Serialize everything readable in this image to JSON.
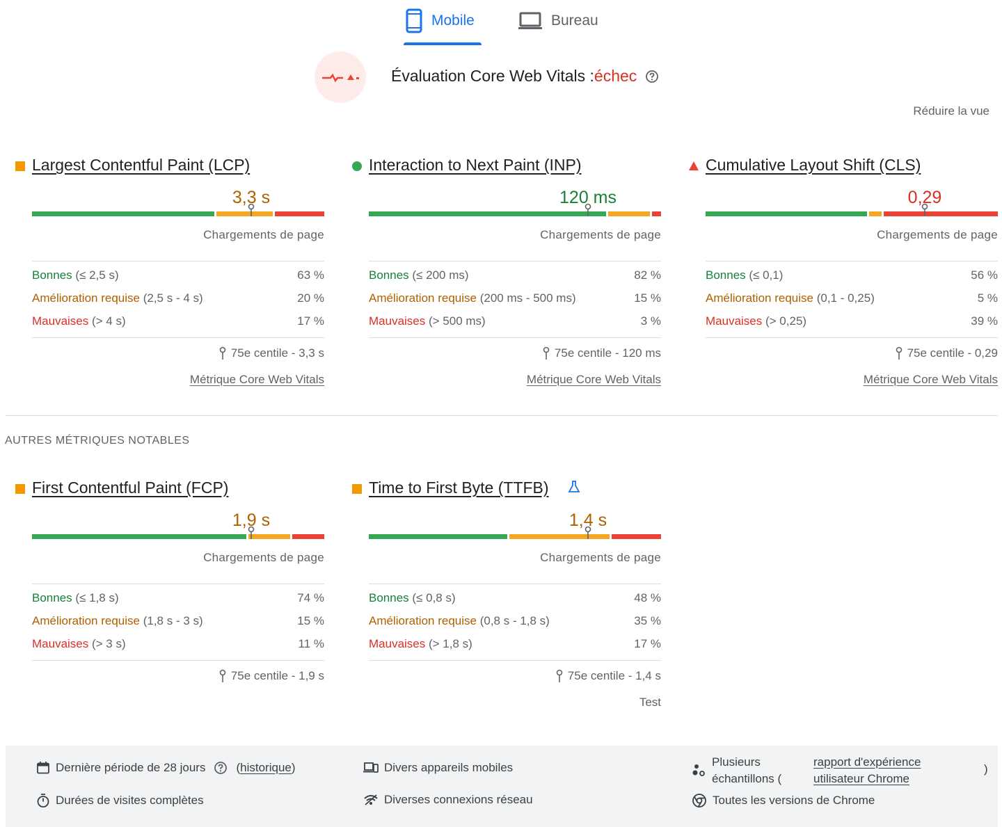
{
  "tabs": [
    {
      "label": "Mobile",
      "icon": "smartphone-icon",
      "active": true
    },
    {
      "label": "Bureau",
      "icon": "laptop-icon",
      "active": false
    }
  ],
  "assessment": {
    "title": "Évaluation Core Web Vitals :",
    "status": "échec",
    "icon": "failed-assessment-icon",
    "status_color": "#d93025"
  },
  "reduce_view_label": "Réduire la vue",
  "loads_label": "Chargements de page",
  "core_link_label": "Métrique Core Web Vitals",
  "metrics": [
    {
      "id": "lcp",
      "name": "Largest Contentful Paint (LCP)",
      "indicator": "square",
      "indicator_color": "#f29900",
      "value": "3,3 s",
      "value_class": "avg",
      "good": {
        "label": "Bonnes",
        "range": "(≤ 2,5 s)",
        "pct": "63 %",
        "fraction": 0.63
      },
      "average": {
        "label": "Amélioration requise",
        "range": "(2,5 s - 4 s)",
        "pct": "20 %",
        "fraction": 0.2
      },
      "poor": {
        "label": "Mauvaises",
        "range": "(> 4 s)",
        "pct": "17 %",
        "fraction": 0.17
      },
      "p75_fraction": 0.75,
      "p75": "75e centile - 3,3 s"
    },
    {
      "id": "inp",
      "name": "Interaction to Next Paint (INP)",
      "indicator": "circle",
      "indicator_color": "#34a853",
      "value": "120 ms",
      "value_class": "good",
      "good": {
        "label": "Bonnes",
        "range": "(≤ 200 ms)",
        "pct": "82 %",
        "fraction": 0.82
      },
      "average": {
        "label": "Amélioration requise",
        "range": "(200 ms - 500 ms)",
        "pct": "15 %",
        "fraction": 0.15
      },
      "poor": {
        "label": "Mauvaises",
        "range": "(> 500 ms)",
        "pct": "3 %",
        "fraction": 0.03
      },
      "p75_fraction": 0.75,
      "p75": "75e centile - 120 ms"
    },
    {
      "id": "cls",
      "name": "Cumulative Layout Shift (CLS)",
      "indicator": "triangle",
      "indicator_color": "#ea4335",
      "value": "0,29",
      "value_class": "poor",
      "good": {
        "label": "Bonnes",
        "range": "(≤ 0,1)",
        "pct": "56 %",
        "fraction": 0.56
      },
      "average": {
        "label": "Amélioration requise",
        "range": "(0,1 - 0,25)",
        "pct": "5 %",
        "fraction": 0.05
      },
      "poor": {
        "label": "Mauvaises",
        "range": "(> 0,25)",
        "pct": "39 %",
        "fraction": 0.39
      },
      "p75_fraction": 0.75,
      "p75": "75e centile - 0,29"
    }
  ],
  "other_title": "AUTRES MÉTRIQUES NOTABLES",
  "other_metrics": [
    {
      "id": "fcp",
      "name": "First Contentful Paint (FCP)",
      "indicator": "square",
      "indicator_color": "#f29900",
      "value": "1,9 s",
      "value_class": "avg",
      "good": {
        "label": "Bonnes",
        "range": "(≤ 1,8 s)",
        "pct": "74 %",
        "fraction": 0.74
      },
      "average": {
        "label": "Amélioration requise",
        "range": "(1,8 s - 3 s)",
        "pct": "15 %",
        "fraction": 0.15
      },
      "poor": {
        "label": "Mauvaises",
        "range": "(> 3 s)",
        "pct": "11 %",
        "fraction": 0.11
      },
      "p75_fraction": 0.75,
      "p75": "75e centile - 1,9 s"
    },
    {
      "id": "ttfb",
      "name": "Time to First Byte (TTFB)",
      "indicator": "square",
      "indicator_color": "#f29900",
      "value": "1,4 s",
      "value_class": "avg",
      "experimental_icon": "flask-icon",
      "good": {
        "label": "Bonnes",
        "range": "(≤ 0,8 s)",
        "pct": "48 %",
        "fraction": 0.48
      },
      "average": {
        "label": "Amélioration requise",
        "range": "(0,8 s - 1,8 s)",
        "pct": "35 %",
        "fraction": 0.35
      },
      "poor": {
        "label": "Mauvaises",
        "range": "(> 1,8 s)",
        "pct": "17 %",
        "fraction": 0.17
      },
      "p75_fraction": 0.75,
      "p75": "75e centile - 1,4 s",
      "extra": "Test"
    }
  ],
  "footer": {
    "period": "Dernière période de 28 jours",
    "history_open": "(",
    "history_link": "historique",
    "history_close": ")",
    "devices": "Divers appareils mobiles",
    "samples_line1": "Plusieurs",
    "samples_line2": "échantillons (",
    "crux_link_line1": "rapport d'expérience",
    "crux_link_line2": "utilisateur Chrome",
    "samples_close": ")",
    "visits": "Durées de visites complètes",
    "network": "Diverses connexions réseau",
    "chrome": "Toutes les versions de Chrome"
  },
  "colors": {
    "good": "#34a853",
    "average": "#f5a623",
    "poor": "#ea4335",
    "accent": "#1a73e8"
  }
}
